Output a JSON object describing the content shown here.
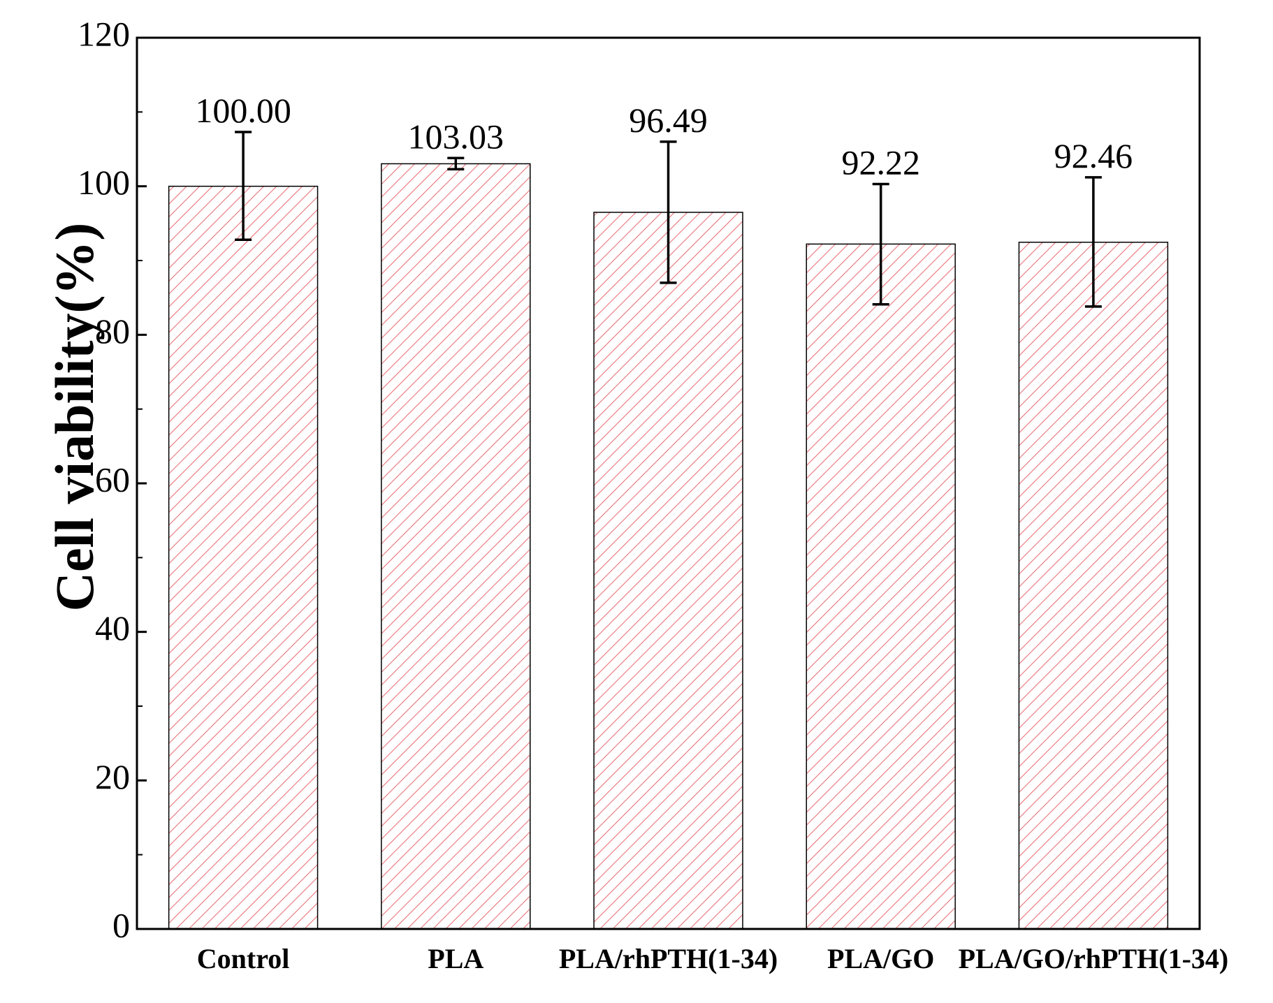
{
  "chart_data": {
    "type": "bar",
    "categories": [
      "Control",
      "PLA",
      "PLA/rhPTH(1-34)",
      "PLA/GO",
      "PLA/GO/rhPTH(1-34)"
    ],
    "values": [
      100.0,
      103.03,
      96.49,
      92.22,
      92.46
    ],
    "error_upper": [
      107.3,
      103.8,
      106.0,
      100.3,
      101.2
    ],
    "error_lower": [
      92.8,
      102.3,
      87.0,
      84.1,
      83.8
    ],
    "value_labels": [
      "100.00",
      "103.03",
      "96.49",
      "92.22",
      "92.46"
    ],
    "ylabel": "Cell viability(%)",
    "xlabel": "",
    "title": "",
    "ylim": [
      0,
      120
    ],
    "yticks": [
      0,
      20,
      40,
      60,
      80,
      100,
      120
    ],
    "grid": false,
    "legend": "none",
    "bar_pattern": "diagonal-hatch",
    "colors": {
      "hatch": "#e8737a",
      "bar_fill": "#ffffff",
      "bar_outline": "#000000",
      "axis": "#000000",
      "error_bar": "#000000"
    }
  }
}
